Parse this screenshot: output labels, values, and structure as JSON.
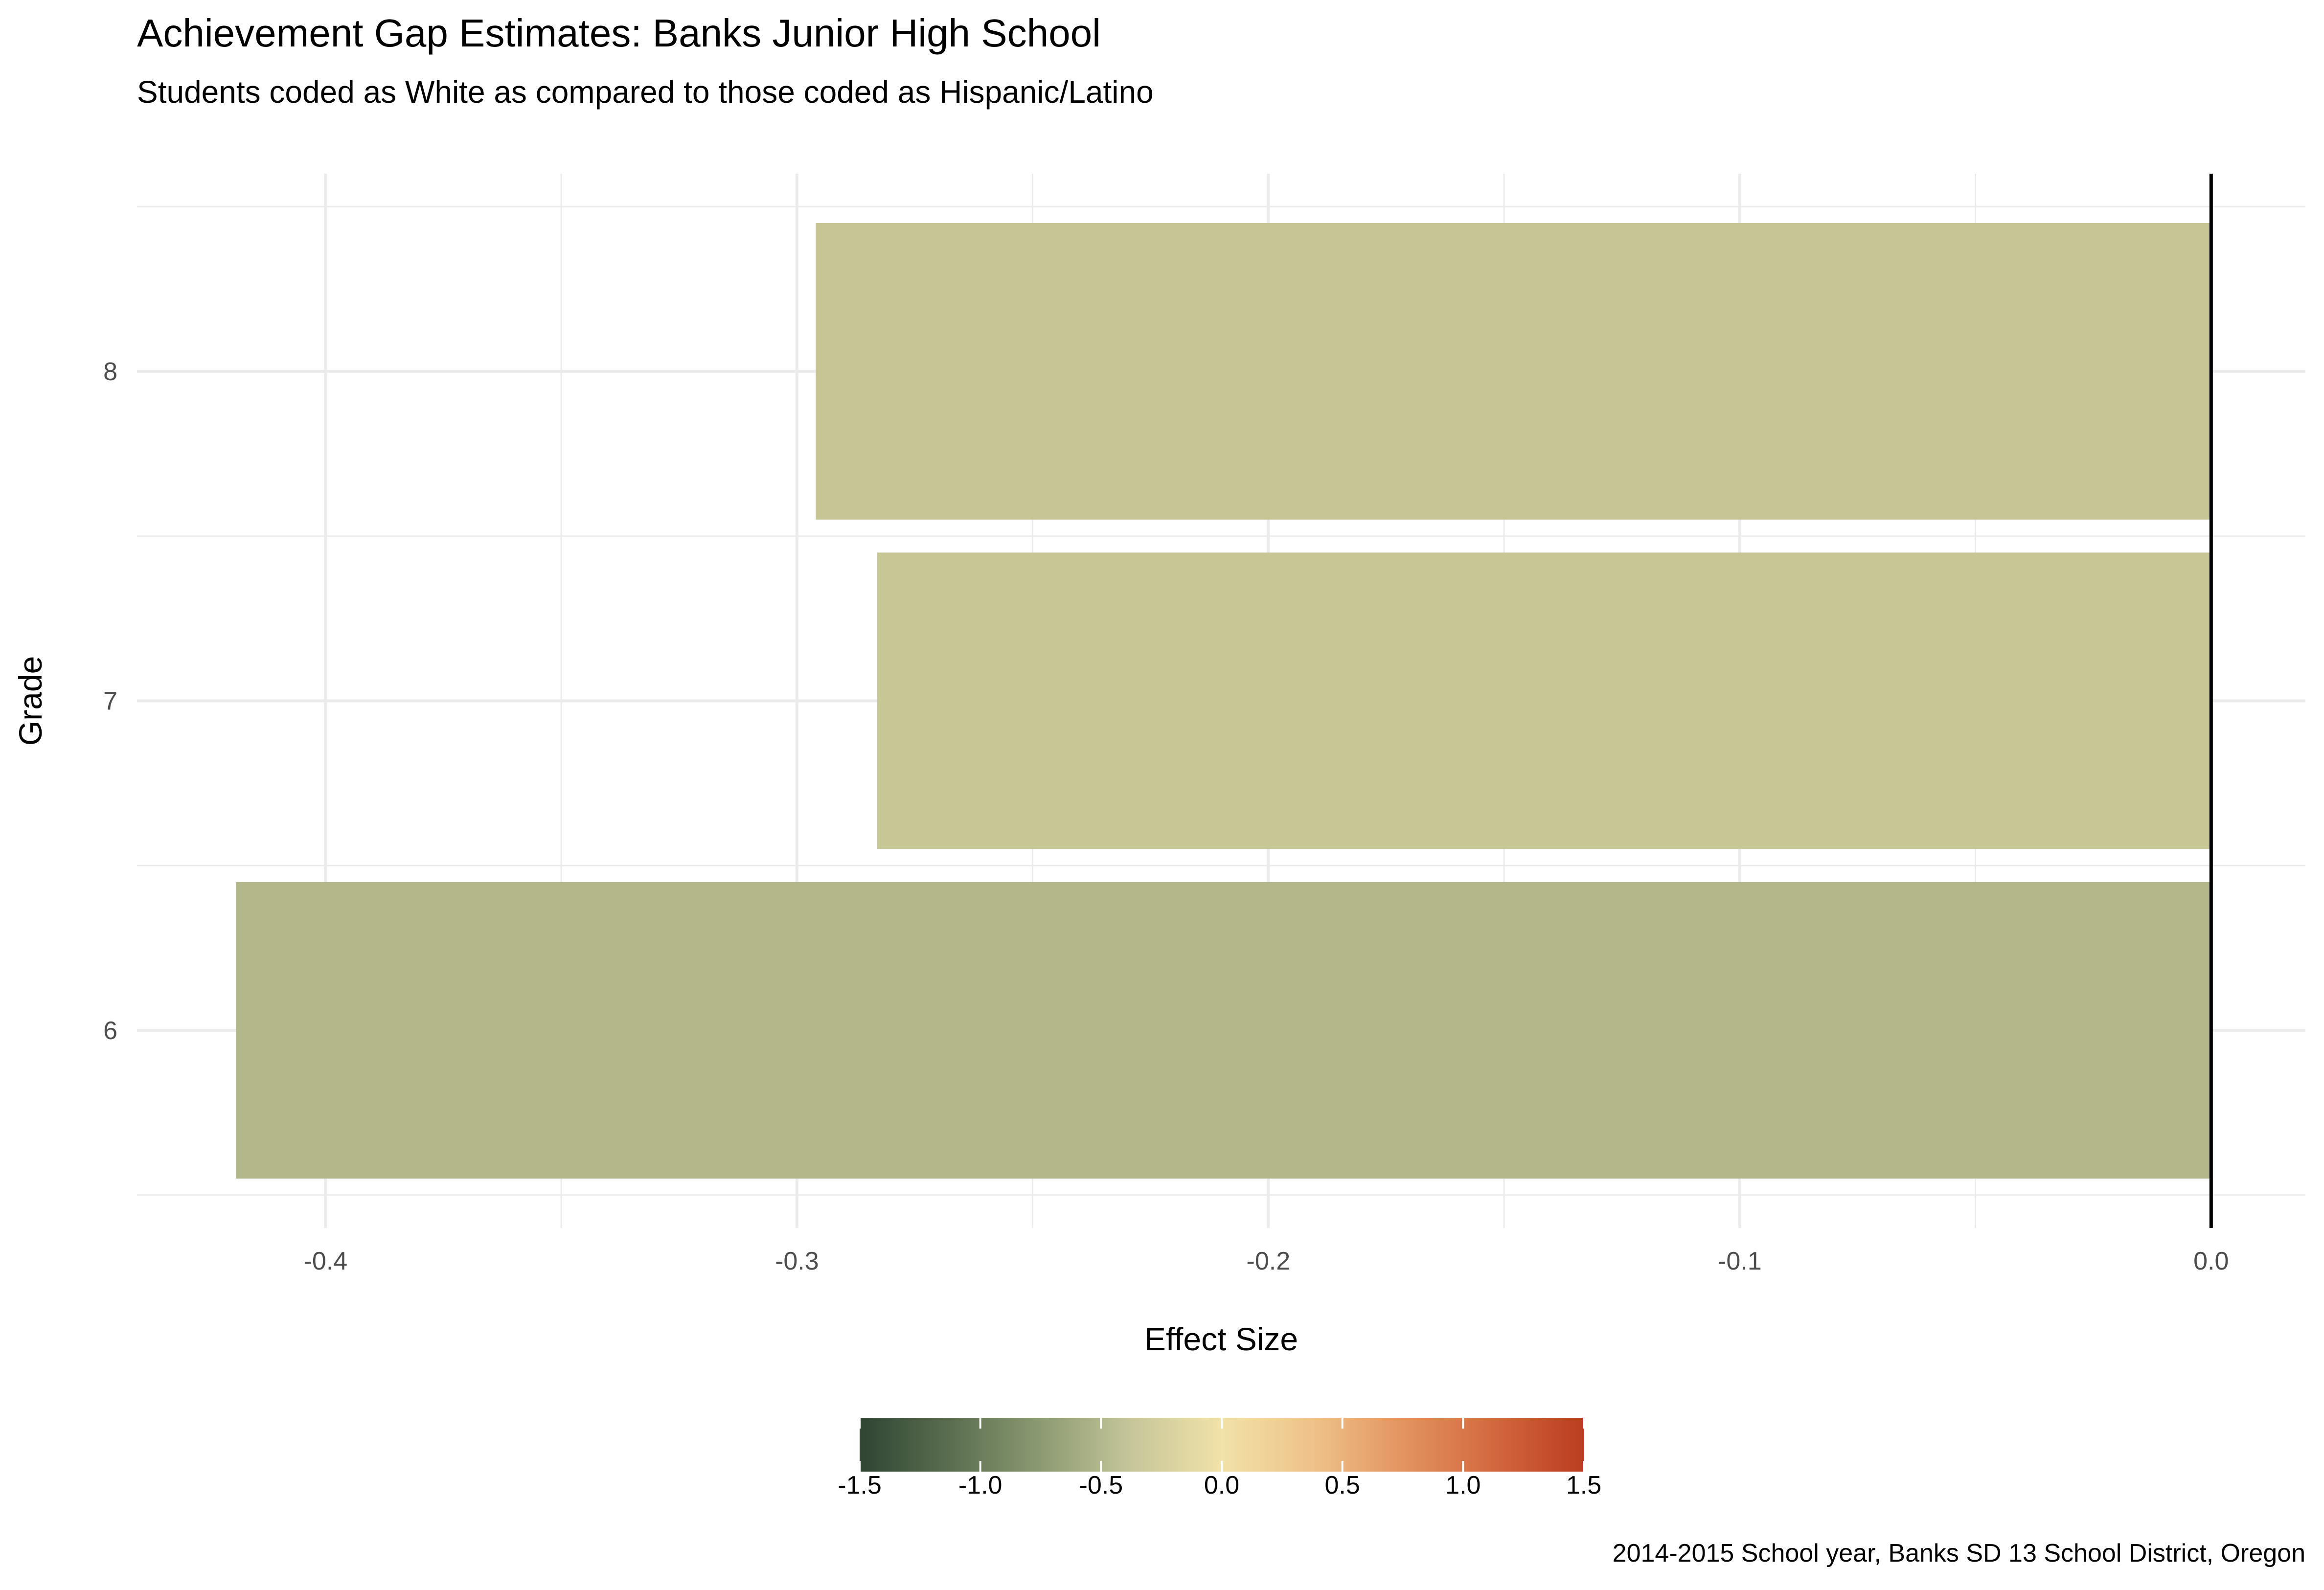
{
  "chart_data": {
    "type": "bar",
    "orientation": "horizontal",
    "title": "Achievement Gap Estimates: Banks Junior High School",
    "subtitle": "Students coded as White as compared to those coded as Hispanic/Latino",
    "xlabel": "Effect Size",
    "ylabel": "Grade",
    "caption": "2014-2015 School year, Banks SD 13 School District, Oregon",
    "categories": [
      "6",
      "7",
      "8"
    ],
    "values": [
      -0.419,
      -0.283,
      -0.296
    ],
    "xlim": [
      -0.44,
      0.02
    ],
    "x_ticks": [
      "-0.4",
      "-0.3",
      "-0.2",
      "-0.1",
      "0.0"
    ],
    "x_tick_values": [
      -0.4,
      -0.3,
      -0.2,
      -0.1,
      0.0
    ],
    "grid": true,
    "reference_line": 0,
    "legend": {
      "type": "colorbar",
      "placement": "bottom",
      "range": [
        -1.5,
        1.5
      ],
      "tick_labels": [
        "-1.5",
        "-1.0",
        "-0.5",
        "0.0",
        "0.5",
        "1.0",
        "1.5"
      ],
      "tick_values": [
        -1.5,
        -1.0,
        -0.5,
        0.0,
        0.5,
        1.0,
        1.5
      ],
      "colors": [
        "#2f4533",
        "#5a6e4f",
        "#8c9a72",
        "#c6c69a",
        "#f1e2a8",
        "#eec28a",
        "#e39460",
        "#d3683f",
        "#bb3d21"
      ]
    },
    "bar_colors": [
      "#b3b78a",
      "#c7c695",
      "#c6c595"
    ]
  }
}
